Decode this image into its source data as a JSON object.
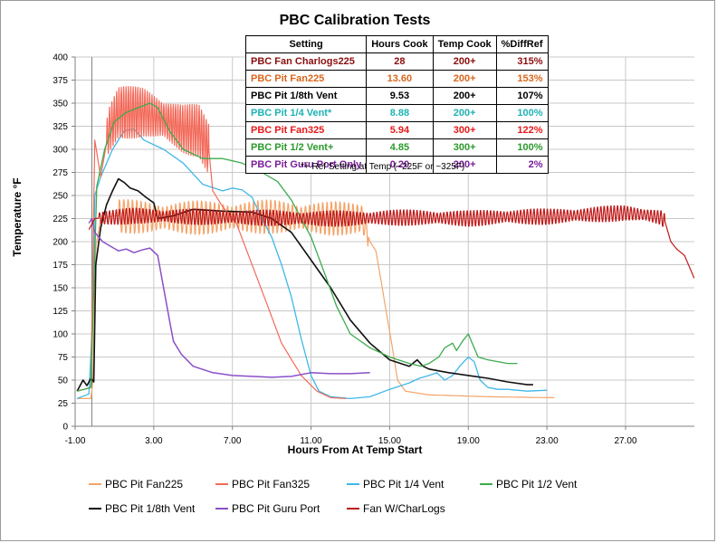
{
  "chart_data": {
    "type": "line",
    "title": "PBC Calibration Tests",
    "xlabel": "Hours From At Temp Start",
    "ylabel": "Temperature °F",
    "xlim": [
      -1,
      30.5
    ],
    "ylim": [
      0,
      400
    ],
    "x_ticks": [
      -1,
      3,
      7,
      11,
      15,
      19,
      23,
      27
    ],
    "x_tick_labels": [
      "-1.00",
      "3.00",
      "7.00",
      "11.00",
      "15.00",
      "19.00",
      "23.00",
      "27.00"
    ],
    "y_ticks": [
      0,
      25,
      50,
      75,
      100,
      125,
      150,
      175,
      200,
      225,
      250,
      275,
      300,
      325,
      350,
      375,
      400
    ],
    "grid": true,
    "legend": "bottom",
    "series": [
      {
        "name": "PBC Pit Fan225",
        "color": "#f4a46a",
        "width": 1.2,
        "osc": {
          "from": 1.2,
          "to": 13.9,
          "amp": 19,
          "period": 0.22
        },
        "points": [
          [
            -0.9,
            30
          ],
          [
            -0.2,
            30
          ],
          [
            -0.1,
            48
          ],
          [
            0.05,
            195
          ],
          [
            0.3,
            225
          ],
          [
            1,
            228
          ],
          [
            3,
            226
          ],
          [
            6,
            226
          ],
          [
            9,
            227
          ],
          [
            12,
            225
          ],
          [
            13.6,
            225
          ],
          [
            14,
            200
          ],
          [
            14.3,
            190
          ],
          [
            14.7,
            140
          ],
          [
            15.1,
            90
          ],
          [
            15.4,
            50
          ],
          [
            15.8,
            38
          ],
          [
            17,
            34
          ],
          [
            20,
            32
          ],
          [
            23,
            31
          ],
          [
            23.4,
            31
          ]
        ]
      },
      {
        "name": "PBC Pit Fan325",
        "color": "#f26a5a",
        "width": 1.2,
        "osc": {
          "from": 0.6,
          "to": 5.8,
          "amp": 28,
          "period": 0.12
        },
        "points": [
          [
            -0.9,
            38
          ],
          [
            -0.2,
            42
          ],
          [
            0,
            310
          ],
          [
            0.3,
            270
          ],
          [
            0.7,
            320
          ],
          [
            1.2,
            340
          ],
          [
            2.5,
            340
          ],
          [
            3.5,
            332
          ],
          [
            4.5,
            322
          ],
          [
            5.3,
            320
          ],
          [
            5.8,
            300
          ],
          [
            6,
            255
          ],
          [
            6.5,
            238
          ],
          [
            7.2,
            220
          ],
          [
            8,
            175
          ],
          [
            8.8,
            130
          ],
          [
            9.5,
            90
          ],
          [
            10.5,
            55
          ],
          [
            11.3,
            38
          ],
          [
            12,
            31
          ],
          [
            12.8,
            30
          ]
        ]
      },
      {
        "name": "PBC Pit 1/4 Vent",
        "color": "#3fb8e8",
        "width": 1.3,
        "points": [
          [
            -0.9,
            30
          ],
          [
            -0.3,
            35
          ],
          [
            -0.1,
            120
          ],
          [
            0,
            250
          ],
          [
            0.3,
            270
          ],
          [
            0.5,
            280
          ],
          [
            0.9,
            300
          ],
          [
            1.5,
            320
          ],
          [
            2,
            322
          ],
          [
            2.5,
            310
          ],
          [
            3.5,
            300
          ],
          [
            4.5,
            285
          ],
          [
            5.5,
            262
          ],
          [
            6.5,
            255
          ],
          [
            7,
            258
          ],
          [
            7.5,
            256
          ],
          [
            8,
            248
          ],
          [
            8.5,
            225
          ],
          [
            9,
            205
          ],
          [
            9.5,
            175
          ],
          [
            10,
            140
          ],
          [
            10.5,
            95
          ],
          [
            11,
            55
          ],
          [
            11.4,
            38
          ],
          [
            12,
            32
          ],
          [
            13,
            30
          ],
          [
            14,
            32
          ],
          [
            15,
            40
          ],
          [
            16,
            47
          ],
          [
            16.5,
            52
          ],
          [
            17,
            55
          ],
          [
            17.4,
            58
          ],
          [
            17.8,
            50
          ],
          [
            18.2,
            55
          ],
          [
            18.6,
            66
          ],
          [
            19,
            75
          ],
          [
            19.3,
            70
          ],
          [
            19.6,
            50
          ],
          [
            20,
            42
          ],
          [
            20.5,
            40
          ],
          [
            21,
            40
          ],
          [
            22,
            38
          ],
          [
            23,
            39
          ]
        ]
      },
      {
        "name": "PBC Pit 1/2 Vent",
        "color": "#3dab4e",
        "width": 1.3,
        "points": [
          [
            -0.9,
            38
          ],
          [
            -0.2,
            42
          ],
          [
            0.1,
            260
          ],
          [
            0.5,
            300
          ],
          [
            1,
            330
          ],
          [
            1.6,
            340
          ],
          [
            2.2,
            345
          ],
          [
            2.8,
            350
          ],
          [
            3.2,
            345
          ],
          [
            3.8,
            320
          ],
          [
            4.5,
            300
          ],
          [
            5.5,
            290
          ],
          [
            6.5,
            290
          ],
          [
            7.5,
            285
          ],
          [
            8.5,
            275
          ],
          [
            9.3,
            265
          ],
          [
            10,
            245
          ],
          [
            11,
            205
          ],
          [
            11.7,
            165
          ],
          [
            12.3,
            130
          ],
          [
            13,
            100
          ],
          [
            14,
            85
          ],
          [
            15,
            75
          ],
          [
            16,
            68
          ],
          [
            16.6,
            65
          ],
          [
            17,
            68
          ],
          [
            17.5,
            75
          ],
          [
            17.8,
            85
          ],
          [
            18.2,
            90
          ],
          [
            18.4,
            82
          ],
          [
            18.7,
            92
          ],
          [
            19,
            100
          ],
          [
            19.2,
            90
          ],
          [
            19.5,
            75
          ],
          [
            20,
            72
          ],
          [
            20.5,
            70
          ],
          [
            21,
            68
          ],
          [
            21.5,
            68
          ]
        ]
      },
      {
        "name": "PBC Pit 1/8th Vent",
        "color": "#111111",
        "width": 1.6,
        "points": [
          [
            -0.9,
            38
          ],
          [
            -0.6,
            50
          ],
          [
            -0.4,
            44
          ],
          [
            -0.2,
            52
          ],
          [
            -0.05,
            48
          ],
          [
            0.05,
            175
          ],
          [
            0.3,
            215
          ],
          [
            0.6,
            240
          ],
          [
            0.9,
            255
          ],
          [
            1.2,
            268
          ],
          [
            1.5,
            264
          ],
          [
            1.8,
            258
          ],
          [
            2.2,
            255
          ],
          [
            2.6,
            248
          ],
          [
            3,
            242
          ],
          [
            3.2,
            225
          ],
          [
            4,
            228
          ],
          [
            5,
            235
          ],
          [
            6.5,
            233
          ],
          [
            8,
            232
          ],
          [
            9,
            225
          ],
          [
            10,
            210
          ],
          [
            11,
            180
          ],
          [
            12,
            150
          ],
          [
            13,
            115
          ],
          [
            14,
            90
          ],
          [
            15,
            72
          ],
          [
            16,
            65
          ],
          [
            16.4,
            72
          ],
          [
            16.7,
            65
          ],
          [
            17,
            62
          ],
          [
            18,
            58
          ],
          [
            19,
            55
          ],
          [
            20,
            52
          ],
          [
            21,
            48
          ],
          [
            22,
            45
          ],
          [
            22.3,
            45
          ]
        ]
      },
      {
        "name": "PBC Pit Guru Port",
        "color": "#8a4fc8",
        "width": 1.5,
        "points": [
          [
            -0.3,
            220
          ],
          [
            -0.15,
            225
          ],
          [
            0,
            210
          ],
          [
            0.4,
            200
          ],
          [
            0.8,
            195
          ],
          [
            1.2,
            190
          ],
          [
            1.6,
            192
          ],
          [
            2,
            188
          ],
          [
            2.4,
            191
          ],
          [
            2.8,
            193
          ],
          [
            3.2,
            185
          ],
          [
            3.5,
            150
          ],
          [
            3.8,
            115
          ],
          [
            4,
            92
          ],
          [
            4.4,
            78
          ],
          [
            5,
            65
          ],
          [
            6,
            58
          ],
          [
            7,
            55
          ],
          [
            8,
            54
          ],
          [
            9,
            53
          ],
          [
            10,
            54
          ],
          [
            11,
            58
          ],
          [
            12,
            57
          ],
          [
            13,
            57
          ],
          [
            14,
            58
          ]
        ]
      },
      {
        "name": "Fan W/CharLogs",
        "color": "#c01a1a",
        "width": 1.2,
        "osc": {
          "from": 0.2,
          "to": 29,
          "amp": 9,
          "period": 0.17
        },
        "points": [
          [
            -0.3,
            213
          ],
          [
            0,
            225
          ],
          [
            2,
            228
          ],
          [
            5,
            227
          ],
          [
            8,
            226
          ],
          [
            11,
            225
          ],
          [
            13,
            225
          ],
          [
            15,
            226
          ],
          [
            17,
            226
          ],
          [
            19,
            225
          ],
          [
            21,
            227
          ],
          [
            23,
            227
          ],
          [
            25,
            229
          ],
          [
            27,
            231
          ],
          [
            28,
            229
          ],
          [
            28.8,
            226
          ],
          [
            29,
            222
          ],
          [
            29.3,
            200
          ],
          [
            29.6,
            192
          ],
          [
            30,
            185
          ],
          [
            30.3,
            170
          ],
          [
            30.5,
            160
          ]
        ]
      }
    ],
    "table": {
      "headers": [
        "Setting",
        "Hours Cook",
        "Temp Cook",
        "%DiffRef"
      ],
      "rows": [
        {
          "setting": "PBC Fan Charlogs225",
          "hours": "28",
          "temp": "200+",
          "diff": "315%",
          "color": "#8b0d0d"
        },
        {
          "setting": "PBC Pit Fan225",
          "hours": "13.60",
          "temp": "200+",
          "diff": "153%",
          "color": "#d9661c"
        },
        {
          "setting": "PBC Pit 1/8th Vent",
          "hours": "9.53",
          "temp": "200+",
          "diff": "107%",
          "color": "#000000"
        },
        {
          "setting": "PBC Pit 1/4 Vent*",
          "hours": "8.88",
          "temp": "200+",
          "diff": "100%",
          "color": "#1eb2b2"
        },
        {
          "setting": "PBC Pit Fan325",
          "hours": "5.94",
          "temp": "300+",
          "diff": "122%",
          "color": "#e81818"
        },
        {
          "setting": "PBC Pit 1/2 Vent+",
          "hours": "4.85",
          "temp": "300+",
          "diff": "100%",
          "color": "#2a9a2a"
        },
        {
          "setting": "PBC Pit Guru Port Only",
          "hours": "0.20",
          "temp": "200+",
          "diff": "2%",
          "color": "#7a1f9a"
        }
      ],
      "note": "*+ Ref Setting at Temp (~225F or ~325F)"
    }
  }
}
